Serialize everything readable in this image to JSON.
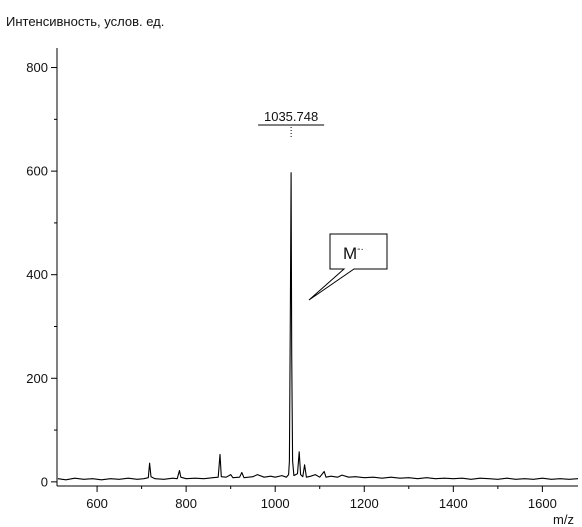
{
  "chart_data": {
    "type": "line",
    "ylabel": "Интенсивность, услов. ед.",
    "xlabel": "m/z",
    "xlim": [
      510,
      1680
    ],
    "ylim": [
      -8,
      830
    ],
    "xticks": [
      600,
      800,
      1000,
      1200,
      1400,
      1600
    ],
    "yticks": [
      0,
      200,
      400,
      600,
      800
    ],
    "grid": false,
    "peak_annotation": {
      "text": "1035.748",
      "x": 1035.748,
      "y": 597
    },
    "ion_annotation": {
      "text": "M",
      "superscript": "-·"
    },
    "series": [
      {
        "points": [
          [
            512,
            6
          ],
          [
            530,
            4
          ],
          [
            550,
            7
          ],
          [
            570,
            5
          ],
          [
            590,
            6
          ],
          [
            610,
            4
          ],
          [
            630,
            6
          ],
          [
            650,
            5
          ],
          [
            670,
            7
          ],
          [
            690,
            5
          ],
          [
            705,
            6
          ],
          [
            715,
            8
          ],
          [
            718,
            36
          ],
          [
            721,
            10
          ],
          [
            730,
            6
          ],
          [
            750,
            5
          ],
          [
            770,
            7
          ],
          [
            780,
            6
          ],
          [
            785,
            22
          ],
          [
            788,
            9
          ],
          [
            800,
            6
          ],
          [
            820,
            7
          ],
          [
            840,
            6
          ],
          [
            860,
            8
          ],
          [
            872,
            9
          ],
          [
            876,
            53
          ],
          [
            879,
            10
          ],
          [
            890,
            9
          ],
          [
            900,
            14
          ],
          [
            905,
            8
          ],
          [
            920,
            9
          ],
          [
            925,
            18
          ],
          [
            930,
            8
          ],
          [
            950,
            10
          ],
          [
            960,
            14
          ],
          [
            975,
            9
          ],
          [
            990,
            11
          ],
          [
            1000,
            9
          ],
          [
            1015,
            12
          ],
          [
            1025,
            9
          ],
          [
            1030,
            14
          ],
          [
            1032,
            40
          ],
          [
            1034,
            310
          ],
          [
            1035.748,
            597
          ],
          [
            1037,
            250
          ],
          [
            1039,
            40
          ],
          [
            1042,
            12
          ],
          [
            1050,
            16
          ],
          [
            1054,
            58
          ],
          [
            1057,
            14
          ],
          [
            1062,
            10
          ],
          [
            1066,
            33
          ],
          [
            1070,
            9
          ],
          [
            1080,
            11
          ],
          [
            1090,
            14
          ],
          [
            1100,
            9
          ],
          [
            1110,
            20
          ],
          [
            1114,
            9
          ],
          [
            1125,
            11
          ],
          [
            1140,
            9
          ],
          [
            1150,
            13
          ],
          [
            1165,
            9
          ],
          [
            1180,
            10
          ],
          [
            1200,
            8
          ],
          [
            1220,
            9
          ],
          [
            1240,
            7
          ],
          [
            1260,
            9
          ],
          [
            1280,
            7
          ],
          [
            1300,
            8
          ],
          [
            1320,
            6
          ],
          [
            1340,
            8
          ],
          [
            1360,
            6
          ],
          [
            1380,
            7
          ],
          [
            1400,
            6
          ],
          [
            1420,
            7
          ],
          [
            1440,
            5
          ],
          [
            1460,
            7
          ],
          [
            1480,
            6
          ],
          [
            1500,
            5
          ],
          [
            1520,
            7
          ],
          [
            1540,
            5
          ],
          [
            1560,
            6
          ],
          [
            1580,
            5
          ],
          [
            1600,
            7
          ],
          [
            1620,
            5
          ],
          [
            1640,
            6
          ],
          [
            1660,
            5
          ],
          [
            1680,
            6
          ]
        ]
      }
    ]
  }
}
